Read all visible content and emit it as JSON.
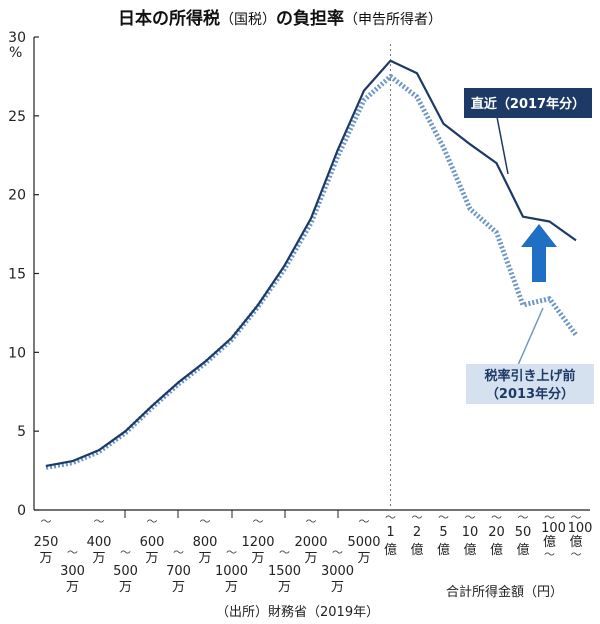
{
  "chart_data": {
    "type": "line",
    "title_main": "日本の所得税",
    "title_sub": "（国税）",
    "title_mid": "の負担率",
    "title_tail": "（申告所得者）",
    "yunit": "%",
    "ylim": [
      0,
      30
    ],
    "yticks": [
      0,
      5,
      10,
      15,
      20,
      25,
      30
    ],
    "xlabel": "合計所得金額（円）",
    "source": "（出所）財務省（2019年）",
    "categories": [
      {
        "num": "250",
        "unit": "万"
      },
      {
        "num": "300",
        "unit": "万"
      },
      {
        "num": "400",
        "unit": "万"
      },
      {
        "num": "500",
        "unit": "万"
      },
      {
        "num": "600",
        "unit": "万"
      },
      {
        "num": "700",
        "unit": "万"
      },
      {
        "num": "800",
        "unit": "万"
      },
      {
        "num": "1000",
        "unit": "万"
      },
      {
        "num": "1200",
        "unit": "万"
      },
      {
        "num": "1500",
        "unit": "万"
      },
      {
        "num": "2000",
        "unit": "万"
      },
      {
        "num": "3000",
        "unit": "万"
      },
      {
        "num": "5000",
        "unit": "万"
      },
      {
        "num": "1",
        "unit": "億"
      },
      {
        "num": "2",
        "unit": "億"
      },
      {
        "num": "5",
        "unit": "億"
      },
      {
        "num": "10",
        "unit": "億"
      },
      {
        "num": "20",
        "unit": "億"
      },
      {
        "num": "50",
        "unit": "億"
      },
      {
        "num": "100",
        "unit": "億"
      },
      {
        "num": "100",
        "unit": "億"
      }
    ],
    "series": [
      {
        "name": "直近（2017年分）",
        "style": "solid",
        "color": "#1d3a66",
        "values": [
          2.8,
          3.1,
          3.8,
          5.0,
          6.6,
          8.1,
          9.4,
          10.9,
          13.0,
          15.5,
          18.5,
          22.8,
          26.6,
          28.5,
          27.7,
          24.5,
          23.2,
          22.0,
          18.6,
          18.3,
          17.1
        ]
      },
      {
        "name": "税率引き上げ前",
        "name_line2": "（2013年分）",
        "style": "dotted",
        "color": "#6f97c4",
        "values": [
          2.7,
          3.0,
          3.7,
          4.9,
          6.5,
          8.0,
          9.3,
          10.8,
          12.9,
          15.3,
          18.2,
          22.4,
          26.0,
          27.5,
          26.2,
          23.0,
          19.1,
          17.6,
          13.0,
          13.4,
          11.1
        ]
      }
    ],
    "divider_at": "1億",
    "arrow_color": "#1f6fc4"
  }
}
